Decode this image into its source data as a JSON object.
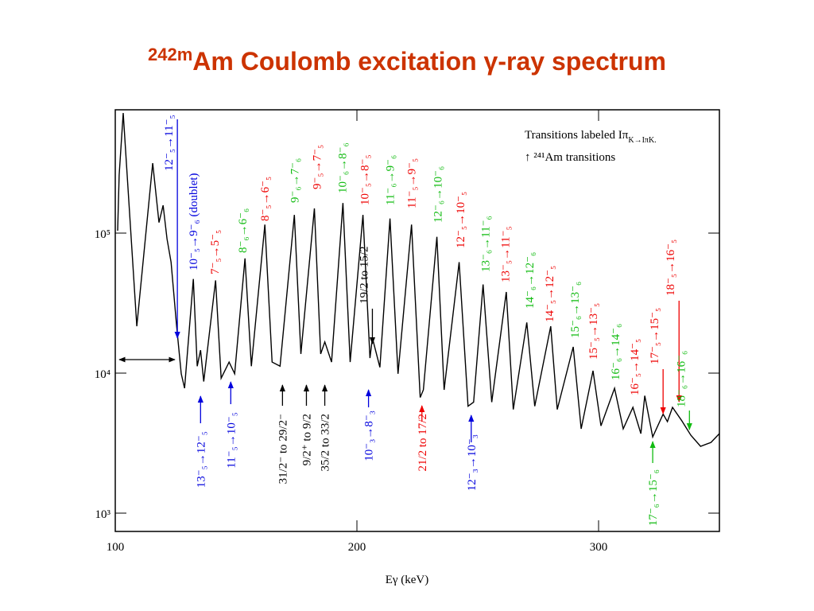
{
  "title_isotope": "242m",
  "title": "Am Coulomb excitation γ-ray spectrum",
  "chart_data": {
    "type": "line",
    "log_y": true,
    "color": "#000000",
    "xlabel": "Eγ (keV)",
    "legend_lines": [
      "Transitions labeled Iπ",
      "K→Iπ",
      "K.",
      "↑ ²⁴¹Am transitions"
    ],
    "xlim": [
      100,
      350
    ],
    "xticks": [
      100,
      200,
      300
    ],
    "ylim": [
      740,
      760000
    ],
    "yticks": [
      {
        "value": 1000,
        "label": "10³"
      },
      {
        "value": 10000,
        "label": "10⁴"
      },
      {
        "value": 100000,
        "label": "10⁵"
      }
    ],
    "x": [
      101.0,
      101.6,
      103.3,
      108.9,
      115.5,
      118.1,
      119.8,
      121.4,
      123.1,
      125.4,
      127.3,
      128.7,
      132.3,
      133.9,
      135.3,
      136.6,
      141.5,
      143.8,
      147.1,
      149.4,
      153.7,
      156.3,
      161.9,
      164.9,
      168.2,
      174.1,
      176.8,
      182.4,
      185.0,
      186.7,
      189.5,
      194.2,
      197.2,
      202.5,
      205.4,
      206.4,
      209.5,
      213.7,
      217.0,
      222.6,
      226.2,
      227.5,
      233.1,
      236.1,
      242.3,
      246.0,
      248.3,
      252.2,
      255.8,
      261.8,
      264.7,
      270.3,
      273.6,
      280.2,
      282.9,
      289.5,
      292.8,
      297.7,
      301.0,
      306.6,
      310.2,
      314.2,
      317.5,
      319.1,
      322.4,
      326.7,
      328.5,
      330.6,
      334.3,
      338.2,
      342.2,
      346.5,
      350
    ],
    "values": [
      104000,
      260000,
      720000,
      21600,
      316000,
      119000,
      158000,
      91000,
      62000,
      21600,
      9900,
      7800,
      47000,
      11200,
      14600,
      8700,
      46000,
      9200,
      12000,
      9900,
      66000,
      11200,
      115000,
      12000,
      11200,
      135000,
      13700,
      150000,
      13700,
      16700,
      12000,
      164000,
      12000,
      135000,
      12800,
      17800,
      11000,
      127000,
      9900,
      115000,
      6700,
      7600,
      94000,
      7600,
      62000,
      5800,
      6200,
      43000,
      6200,
      38000,
      5500,
      23000,
      5800,
      21600,
      5500,
      15400,
      4000,
      10400,
      4200,
      7800,
      4000,
      5700,
      3700,
      6900,
      3500,
      5100,
      4500,
      5700,
      4600,
      3600,
      3000,
      3200,
      3700
    ],
    "annotations": [
      {
        "text": "12⁻₅→11⁻₅",
        "color": "#0000dd",
        "x": 125.7
      },
      {
        "text": "10⁻₅→9⁻₆ (doublet)",
        "color": "#0000dd",
        "x": 132.3
      },
      {
        "text": "7⁻₅→5⁻₅",
        "color": "#ee0000",
        "x": 141.2
      },
      {
        "text": "8⁻₆→6⁻₆",
        "color": "#11bb11",
        "x": 152.7
      },
      {
        "text": "8⁻₅→6⁻₅",
        "color": "#ee0000",
        "x": 161.9
      },
      {
        "text": "9⁻₆→7⁻₆",
        "color": "#11bb11",
        "x": 174.1
      },
      {
        "text": "9⁻₅→7⁻₅",
        "color": "#ee0000",
        "x": 183.4
      },
      {
        "text": "10⁻₆→8⁻₆",
        "color": "#11bb11",
        "x": 193.9
      },
      {
        "text": "10⁻₅→8⁻₅",
        "color": "#ee0000",
        "x": 203.1
      },
      {
        "text": "19/2 to 15/2",
        "color": "#000000",
        "x": 206.4
      },
      {
        "text": "11⁻₆→9⁻₆",
        "color": "#11bb11",
        "x": 213.7
      },
      {
        "text": "11⁻₅→9⁻₅",
        "color": "#ee0000",
        "x": 222.6
      },
      {
        "text": "12⁻₆→10⁻₆",
        "color": "#11bb11",
        "x": 233.4
      },
      {
        "text": "12⁻₅→10⁻₅",
        "color": "#ee0000",
        "x": 242.7
      },
      {
        "text": "13⁻₆→11⁻₆",
        "color": "#11bb11",
        "x": 253.2
      },
      {
        "text": "13⁻₅→11⁻₅",
        "color": "#ee0000",
        "x": 261.4
      },
      {
        "text": "14⁻₆→12⁻₆",
        "color": "#11bb11",
        "x": 271.3
      },
      {
        "text": "14⁻₅→12⁻₅",
        "color": "#ee0000",
        "x": 279.6
      },
      {
        "text": "15⁻₆→13⁻₆",
        "color": "#11bb11",
        "x": 290.1
      },
      {
        "text": "15⁻₅→13⁻₅",
        "color": "#ee0000",
        "x": 297.7
      },
      {
        "text": "16⁻₆→14⁻₆",
        "color": "#11bb11",
        "x": 306.9
      },
      {
        "text": "16⁻₅→14⁻₅",
        "color": "#ee0000",
        "x": 314.8
      },
      {
        "text": "17⁻₅→15⁻₅",
        "color": "#ee0000",
        "x": 326.7
      },
      {
        "text": "18⁻₅→16⁻₅",
        "color": "#ee0000",
        "x": 333.3
      },
      {
        "text": "18⁻₆→16⁻₆",
        "color": "#11bb11",
        "x": 337.6
      },
      {
        "text": "13⁻₅→12⁻₅",
        "color": "#0000dd",
        "x": 135.3
      },
      {
        "text": "11⁻₅→10⁻₅",
        "color": "#0000dd",
        "x": 147.8
      },
      {
        "text": "31/2⁻ to 29/2⁻",
        "color": "#000000",
        "x": 169.2
      },
      {
        "text": "9/2⁺ to 9/2",
        "color": "#000000",
        "x": 179.1
      },
      {
        "text": "35/2 to 33/2",
        "color": "#000000",
        "x": 186.7
      },
      {
        "text": "10⁻₃→8⁻₃",
        "color": "#0000dd",
        "x": 204.8
      },
      {
        "text": "21/2 to 17/2",
        "color": "#ee0000",
        "x": 226.9
      },
      {
        "text": "12⁻₃→10⁻₃",
        "color": "#0000dd",
        "x": 247.3
      },
      {
        "text": "17⁻₆→15⁻₆",
        "color": "#11bb11",
        "x": 322.4
      }
    ]
  }
}
